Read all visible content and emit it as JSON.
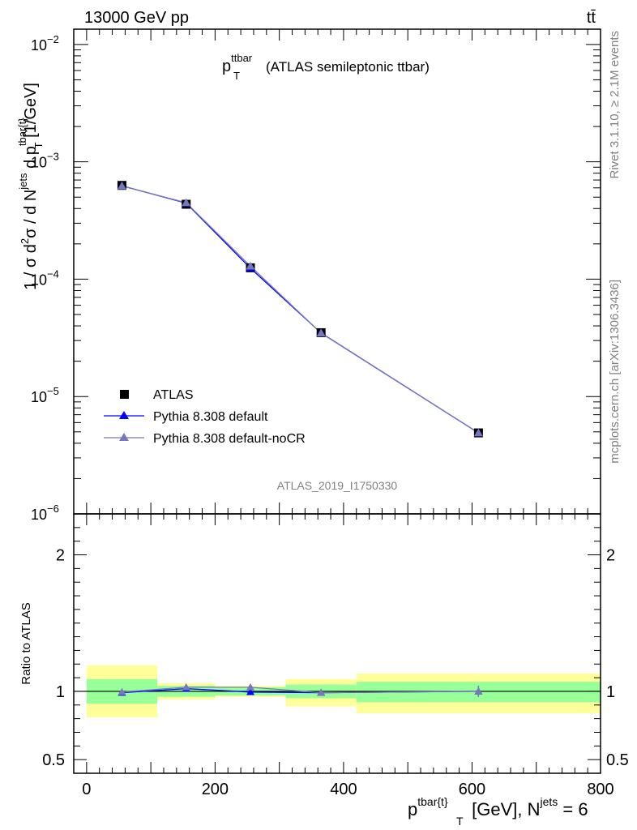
{
  "header": {
    "left": "13000 GeV pp",
    "right": "tt̄"
  },
  "plot_title": {
    "p": "p",
    "sup": "ttbar",
    "sub": "T",
    "rest": "(ATLAS semileptonic ttbar)"
  },
  "side_labels": {
    "rivet": "Rivet 3.1.10, ≥ 2.1M events",
    "mcplots": "mcplots.cern.ch [arXiv:1306.3436]"
  },
  "analysis_id": "ATLAS_2019_I1750330",
  "legend": {
    "position": "lower-left",
    "entries": [
      "ATLAS",
      "Pythia 8.308 default",
      "Pythia 8.308 default-noCR"
    ]
  },
  "colors": {
    "data": "#000000",
    "pythia_default": "#0000ff",
    "pythia_nocr": "#7777bb",
    "band_inner": "#99ff99",
    "band_outer": "#ffff99"
  },
  "chart_data": [
    {
      "type": "line",
      "panel": "main",
      "ylabel": {
        "a": "1 / σ d",
        "b": "2",
        "c": "σ / d N",
        "d": "jets",
        "e": " d p",
        "f": "tbar{t}",
        "g": "T",
        "h": " [1/GeV]"
      },
      "yscale": "log",
      "ylim": [
        1e-06,
        0.0135
      ],
      "xlim": [
        -20,
        800
      ],
      "ytick_labels": [
        {
          "base": "10",
          "exp": "−6",
          "value": 1e-06
        },
        {
          "base": "10",
          "exp": "−5",
          "value": 1e-05
        },
        {
          "base": "10",
          "exp": "−4",
          "value": 0.0001
        },
        {
          "base": "10",
          "exp": "−3",
          "value": 0.001
        },
        {
          "base": "10",
          "exp": "−2",
          "value": 0.01
        }
      ],
      "bins": [
        [
          0,
          110
        ],
        [
          110,
          200
        ],
        [
          200,
          310
        ],
        [
          310,
          420
        ],
        [
          420,
          800
        ]
      ],
      "series": [
        {
          "name": "ATLAS",
          "x": [
            55,
            155,
            255,
            365,
            610
          ],
          "y": [
            0.00063,
            0.000435,
            0.000125,
            3.5e-05,
            4.9e-06
          ]
        },
        {
          "name": "Pythia 8.308 default",
          "x": [
            55,
            155,
            255,
            365,
            610
          ],
          "y": [
            0.000625,
            0.000445,
            0.000124,
            3.48e-05,
            4.9e-06
          ]
        },
        {
          "name": "Pythia 8.308 default-noCR",
          "x": [
            55,
            155,
            255,
            365,
            610
          ],
          "y": [
            0.000622,
            0.000448,
            0.000129,
            3.47e-05,
            4.9e-06
          ]
        }
      ]
    },
    {
      "type": "line",
      "panel": "ratio",
      "ylabel": "Ratio to ATLAS",
      "ylim": [
        0.4,
        2.3
      ],
      "xlim": [
        -20,
        800
      ],
      "ytick_labels": [
        "0.5",
        "1",
        "2"
      ],
      "ytick_values": [
        0.5,
        1,
        2
      ],
      "xtick_labels": [
        "0",
        "200",
        "400",
        "600",
        "800"
      ],
      "xtick_values": [
        0,
        200,
        400,
        600,
        800
      ],
      "xlabel": {
        "a": "p",
        "b": "tbar{t}",
        "c": "T",
        "d": " [GeV], N",
        "e": "jets",
        "f": " = 6"
      },
      "bands": [
        {
          "x0": 0,
          "x1": 110,
          "inner": [
            0.91,
            1.09
          ],
          "outer": [
            0.81,
            1.19
          ]
        },
        {
          "x0": 110,
          "x1": 200,
          "inner": [
            0.96,
            1.04
          ],
          "outer": [
            0.94,
            1.06
          ]
        },
        {
          "x0": 200,
          "x1": 310,
          "inner": [
            0.97,
            1.03
          ],
          "outer": [
            0.96,
            1.04
          ]
        },
        {
          "x0": 310,
          "x1": 420,
          "inner": [
            0.95,
            1.05
          ],
          "outer": [
            0.89,
            1.09
          ]
        },
        {
          "x0": 420,
          "x1": 800,
          "inner": [
            0.92,
            1.07
          ],
          "outer": [
            0.84,
            1.13
          ]
        }
      ],
      "series": [
        {
          "name": "Pythia 8.308 default",
          "x": [
            55,
            155,
            255,
            365,
            610
          ],
          "y": [
            0.99,
            1.02,
            0.995,
            0.99,
            1.0
          ],
          "err": [
            0.008,
            0.01,
            0.01,
            0.02,
            0.04
          ]
        },
        {
          "name": "Pythia 8.308 default-noCR",
          "x": [
            55,
            155,
            255,
            365,
            610
          ],
          "y": [
            0.995,
            1.03,
            1.03,
            0.99,
            1.0
          ],
          "err": [
            0.008,
            0.01,
            0.01,
            0.02,
            0.04
          ]
        }
      ]
    }
  ]
}
